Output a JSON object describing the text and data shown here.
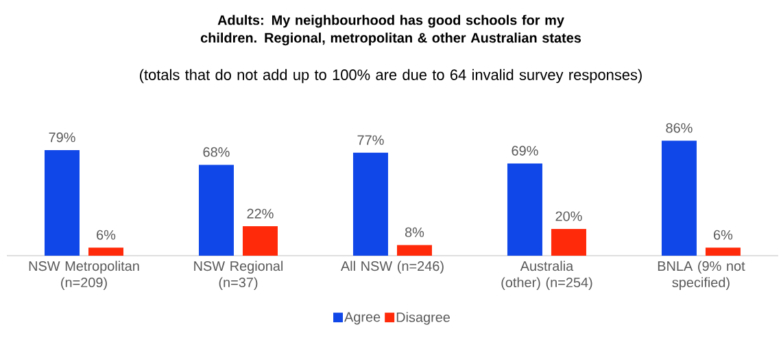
{
  "chart_data": {
    "type": "bar",
    "title": "Adults: My neighbourhood has good schools for my children. Regional, metropolitan & other Australian states",
    "subtitle": "(totals that do not add up to 100% are due to 64 invalid survey responses)",
    "categories": [
      "NSW Metropolitan (n=209)",
      "NSW Regional (n=37)",
      "All NSW (n=246)",
      "Australia (other) (n=254)",
      "BNLA (9% not specified)"
    ],
    "series": [
      {
        "name": "Agree",
        "color": "#1047e8",
        "values": [
          79,
          68,
          77,
          69,
          86
        ],
        "value_labels": [
          "79%",
          "68%",
          "77%",
          "69%",
          "86%"
        ]
      },
      {
        "name": "Disagree",
        "color": "#ff2a0a",
        "values": [
          6,
          22,
          8,
          20,
          6
        ],
        "value_labels": [
          "6%",
          "22%",
          "8%",
          "20%",
          "6%"
        ]
      }
    ],
    "legend": "bottom"
  }
}
